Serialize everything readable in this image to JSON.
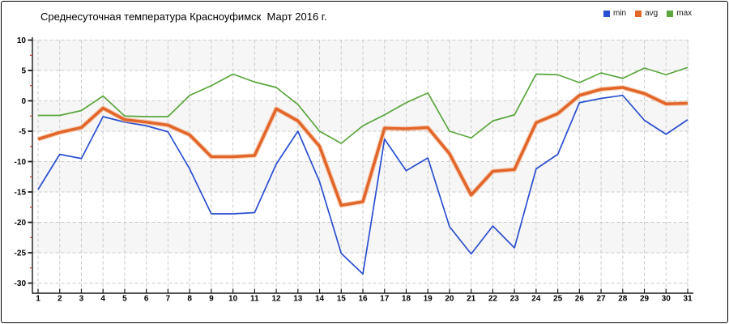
{
  "chart_data": {
    "type": "line",
    "title": "Среднесуточная температура Красноуфимск  Март 2016 г.",
    "x": [
      1,
      2,
      3,
      4,
      5,
      6,
      7,
      8,
      9,
      10,
      11,
      12,
      13,
      14,
      15,
      16,
      17,
      18,
      19,
      20,
      21,
      22,
      23,
      24,
      25,
      26,
      27,
      28,
      29,
      30,
      31
    ],
    "ylim": [
      -30,
      10
    ],
    "yticks": [
      10,
      5,
      0,
      -5,
      -10,
      -15,
      -20,
      -25,
      -30
    ],
    "minor_tick_step": 2.5,
    "grid": true,
    "grid_style": "dashed",
    "legend_position": "top-right",
    "series": [
      {
        "name": "min",
        "color": "#2a4fd0",
        "values": [
          -14.6,
          -8.8,
          -9.5,
          -2.6,
          -3.5,
          -4.1,
          -5.1,
          -11.2,
          -18.6,
          -18.6,
          -18.4,
          -10.4,
          -5.0,
          -13.3,
          -25.1,
          -28.5,
          -6.3,
          -11.5,
          -9.4,
          -20.7,
          -25.2,
          -20.6,
          -24.2,
          -11.2,
          -8.8,
          -0.3,
          0.4,
          0.9,
          -3.2,
          -5.5,
          -3.1
        ]
      },
      {
        "name": "avg",
        "color": "#e2662a",
        "values": [
          -6.3,
          -5.2,
          -4.4,
          -1.2,
          -3.1,
          -3.5,
          -4.0,
          -5.6,
          -9.2,
          -9.2,
          -9.0,
          -1.3,
          -3.3,
          -7.5,
          -17.2,
          -16.6,
          -4.5,
          -4.6,
          -4.4,
          -8.7,
          -15.5,
          -11.6,
          -11.3,
          -3.6,
          -2.1,
          0.9,
          1.9,
          2.2,
          1.2,
          -0.5,
          -0.4
        ]
      },
      {
        "name": "max",
        "color": "#5aa63c",
        "values": [
          -2.4,
          -2.4,
          -1.6,
          0.8,
          -2.5,
          -2.6,
          -2.6,
          0.9,
          2.5,
          4.4,
          3.1,
          2.2,
          -0.6,
          -5.0,
          -7.0,
          -4.1,
          -2.3,
          -0.3,
          1.3,
          -5.0,
          -6.1,
          -3.3,
          -2.3,
          4.4,
          4.3,
          3.0,
          4.6,
          3.7,
          5.4,
          4.3,
          5.5
        ]
      }
    ],
    "style": {
      "band_fill": "#f6f6f6",
      "grid_color": "#c9c9c9",
      "axis_color": "#1a1a1a",
      "minor_tick_color": "#c0392b",
      "avg_halo_color": "#f6b690"
    }
  }
}
